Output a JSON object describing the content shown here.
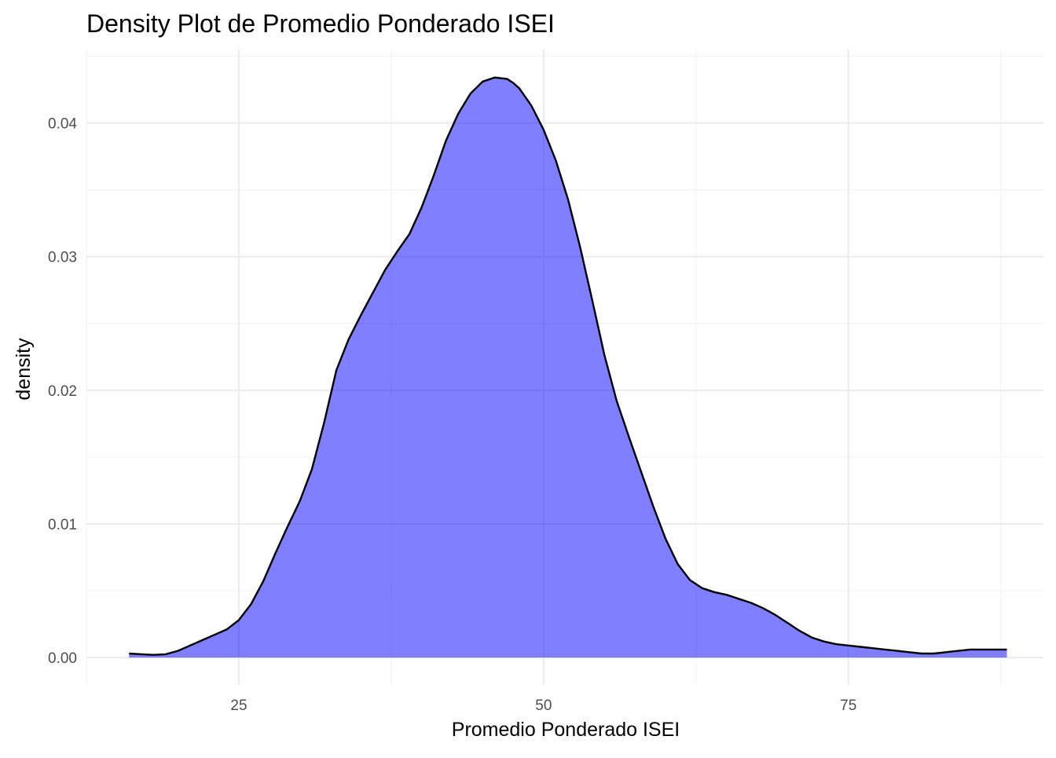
{
  "chart_data": {
    "type": "area",
    "title": "Density Plot de Promedio Ponderado ISEI",
    "xlabel": "Promedio Ponderado ISEI",
    "ylabel": "density",
    "xlim": [
      12.5,
      91
    ],
    "ylim": [
      -0.00205,
      0.0455
    ],
    "x_ticks": [
      25,
      50,
      75
    ],
    "x_tick_labels": [
      "25",
      "50",
      "75"
    ],
    "y_ticks": [
      0.0,
      0.01,
      0.02,
      0.03,
      0.04
    ],
    "y_tick_labels": [
      "0.00",
      "0.01",
      "0.02",
      "0.03",
      "0.04"
    ],
    "grid": true,
    "fill_color": "#8080ff",
    "line_color": "#000000",
    "series": [
      {
        "x": [
          16.0,
          17.0,
          18.0,
          19.0,
          20.0,
          21.0,
          22.0,
          23.0,
          24.0,
          25.0,
          26.0,
          27.0,
          28.0,
          29.0,
          30.0,
          31.0,
          32.0,
          33.0,
          34.0,
          35.0,
          36.0,
          37.0,
          38.0,
          39.0,
          40.0,
          41.0,
          42.0,
          43.0,
          44.0,
          45.0,
          46.0,
          47.0,
          47.5,
          48.0,
          49.0,
          50.0,
          51.0,
          52.0,
          53.0,
          54.0,
          55.0,
          56.0,
          57.0,
          58.0,
          59.0,
          60.0,
          61.0,
          62.0,
          63.0,
          64.0,
          65.0,
          66.0,
          67.0,
          68.0,
          69.0,
          70.0,
          71.0,
          72.0,
          73.0,
          74.0,
          75.0,
          76.0,
          77.0,
          78.0,
          79.0,
          80.0,
          81.0,
          82.0,
          83.0,
          84.0,
          85.0,
          86.0,
          87.0,
          88.0
        ],
        "y": [
          0.0003,
          0.00025,
          0.0002,
          0.00025,
          0.0005,
          0.0009,
          0.0013,
          0.0017,
          0.0021,
          0.0028,
          0.004,
          0.0057,
          0.0078,
          0.0098,
          0.0117,
          0.0141,
          0.0176,
          0.0215,
          0.0238,
          0.0256,
          0.0273,
          0.029,
          0.0304,
          0.0317,
          0.0337,
          0.0361,
          0.0387,
          0.0407,
          0.0422,
          0.0431,
          0.0434,
          0.0433,
          0.043,
          0.0426,
          0.0413,
          0.0395,
          0.0372,
          0.0343,
          0.0307,
          0.0267,
          0.0226,
          0.0192,
          0.0165,
          0.0139,
          0.0113,
          0.0089,
          0.007,
          0.0058,
          0.0052,
          0.0049,
          0.0047,
          0.0044,
          0.0041,
          0.0037,
          0.0032,
          0.0026,
          0.002,
          0.0015,
          0.0012,
          0.001,
          0.0009,
          0.0008,
          0.0007,
          0.0006,
          0.0005,
          0.0004,
          0.0003,
          0.0003,
          0.0004,
          0.0005,
          0.0006,
          0.0006,
          0.0006,
          0.0006
        ]
      }
    ]
  }
}
